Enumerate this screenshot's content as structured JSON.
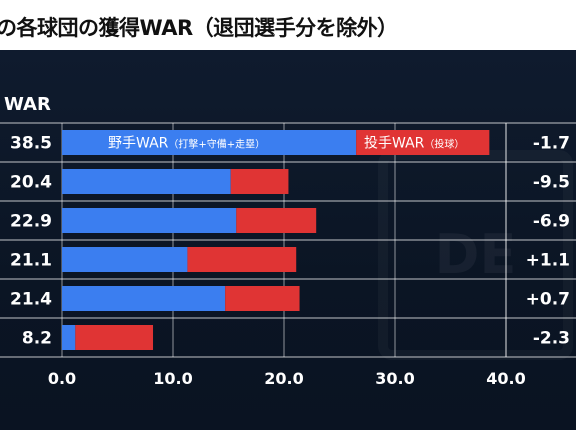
{
  "title": "の各球団の獲得WAR（退団選手分を除外）",
  "column_header": "WAR",
  "colors": {
    "fielder": "#3b7ef0",
    "pitcher": "#e03434",
    "background": "#0c1626",
    "title_bg": "#ffffff"
  },
  "chart_data": {
    "type": "bar",
    "orientation": "horizontal",
    "stacked": true,
    "xlim": [
      0,
      40
    ],
    "x_ticks": [
      "0.0",
      "10.0",
      "20.0",
      "30.0",
      "40.0"
    ],
    "grid": true,
    "totals": [
      "38.5",
      "20.4",
      "22.9",
      "21.1",
      "21.4",
      "8.2"
    ],
    "differences": [
      "-1.7",
      "-9.5",
      "-6.9",
      "+1.1",
      "+0.7",
      "-2.3"
    ],
    "series": [
      {
        "name": "野手WAR",
        "name_detail": "（打撃+守備+走塁）",
        "color": "#3b7ef0",
        "values": [
          26.5,
          15.2,
          15.7,
          11.3,
          14.7,
          1.2
        ]
      },
      {
        "name": "投手WAR",
        "name_detail": "（投球）",
        "color": "#e03434",
        "values": [
          12.0,
          5.2,
          7.2,
          9.8,
          6.7,
          7.0
        ]
      }
    ]
  }
}
